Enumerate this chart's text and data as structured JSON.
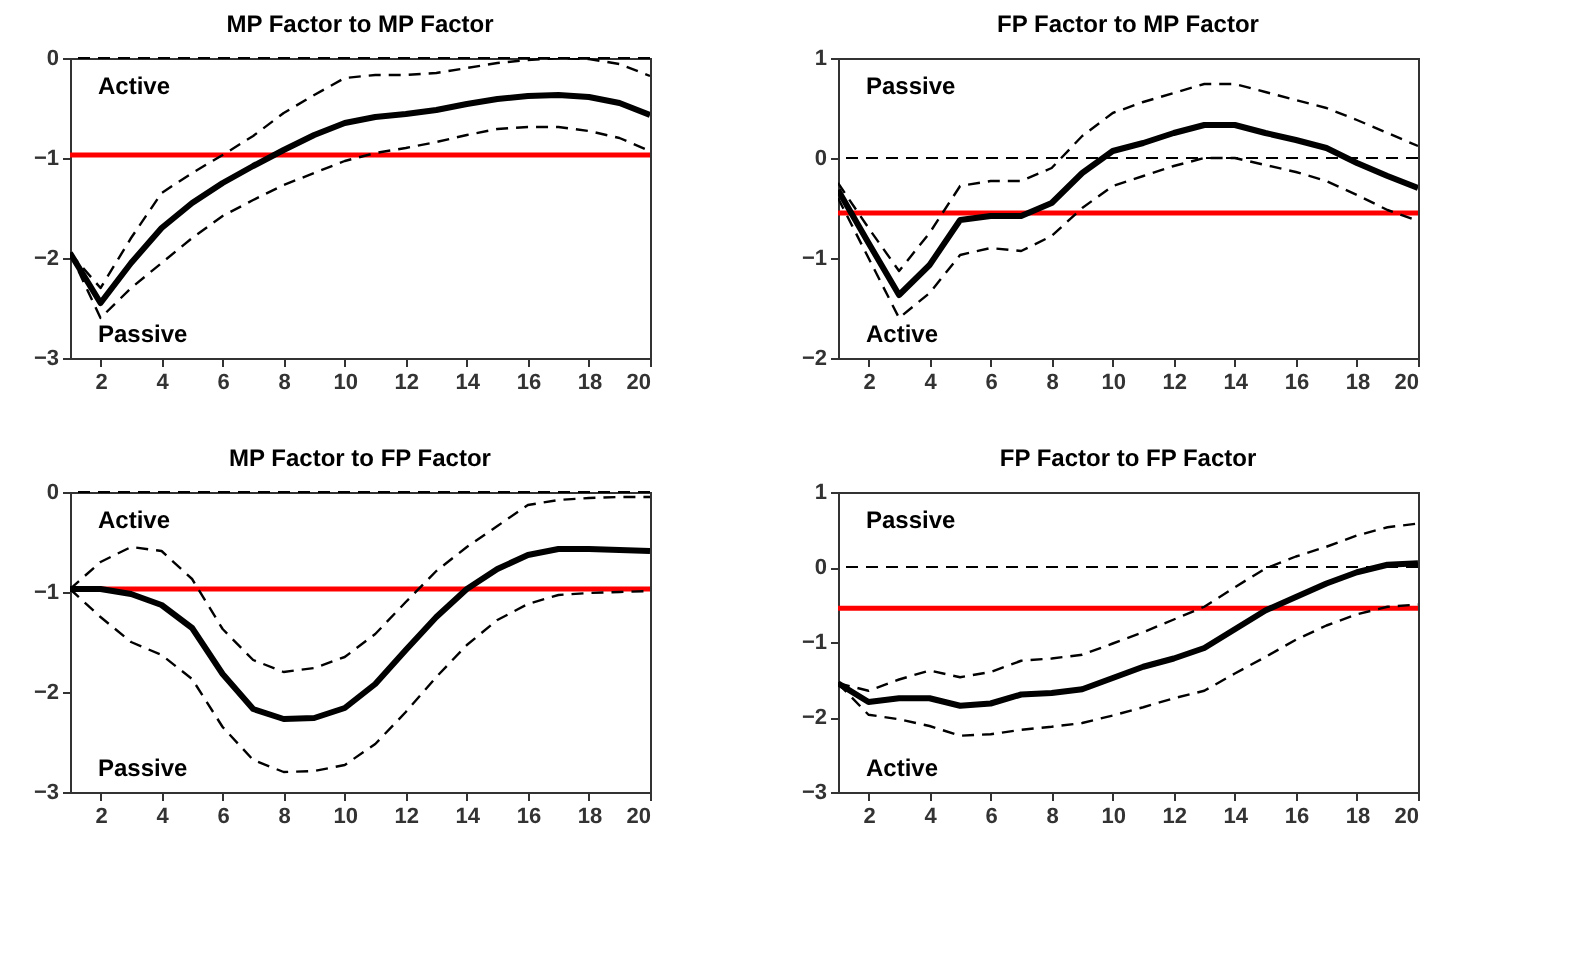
{
  "chart_data": [
    {
      "type": "line",
      "title": "MP Factor to MP Factor",
      "annotations": [
        "Active",
        "Passive"
      ],
      "x": [
        1,
        2,
        3,
        4,
        5,
        6,
        7,
        8,
        9,
        10,
        11,
        12,
        13,
        14,
        15,
        16,
        17,
        18,
        19,
        20
      ],
      "xlim": [
        1,
        20
      ],
      "xticks": [
        2,
        4,
        6,
        8,
        10,
        12,
        14,
        16,
        18,
        20
      ],
      "ylim": [
        -3,
        0
      ],
      "yticks": [
        -3,
        -2,
        -1,
        0
      ],
      "grid": false,
      "marker": "none",
      "series": [
        {
          "color": "#000000",
          "line_style": "solid",
          "values": [
            -1.95,
            -2.45,
            -2.05,
            -1.7,
            -1.45,
            -1.25,
            -1.08,
            -0.92,
            -0.77,
            -0.65,
            -0.59,
            -0.56,
            -0.52,
            -0.46,
            -0.41,
            -0.38,
            -0.37,
            -0.39,
            -0.45,
            -0.57
          ]
        },
        {
          "color": "#000000",
          "line_style": "dashed",
          "values": [
            -1.95,
            -2.3,
            -1.8,
            -1.35,
            -1.15,
            -0.97,
            -0.78,
            -0.55,
            -0.37,
            -0.2,
            -0.17,
            -0.17,
            -0.15,
            -0.1,
            -0.05,
            -0.02,
            0,
            -0.01,
            -0.06,
            -0.18
          ]
        },
        {
          "color": "#000000",
          "line_style": "dashed",
          "values": [
            -1.95,
            -2.6,
            -2.3,
            -2.05,
            -1.8,
            -1.58,
            -1.42,
            -1.27,
            -1.15,
            -1.03,
            -0.95,
            -0.9,
            -0.84,
            -0.77,
            -0.71,
            -0.69,
            -0.69,
            -0.73,
            -0.8,
            -0.93
          ]
        }
      ],
      "ref_lines": [
        {
          "axis": "y",
          "value": 0,
          "color": "#000000",
          "line_style": "dashed"
        },
        {
          "axis": "y",
          "value": -0.97,
          "color": "#ff0000",
          "line_style": "solid"
        }
      ]
    },
    {
      "type": "line",
      "title": "FP Factor to MP Factor",
      "annotations": [
        "Passive",
        "Active"
      ],
      "x": [
        1,
        2,
        3,
        4,
        5,
        6,
        7,
        8,
        9,
        10,
        11,
        12,
        13,
        14,
        15,
        16,
        17,
        18,
        19,
        20
      ],
      "xlim": [
        1,
        20
      ],
      "xticks": [
        2,
        4,
        6,
        8,
        10,
        12,
        14,
        16,
        18,
        20
      ],
      "ylim": [
        -2,
        1
      ],
      "yticks": [
        -2,
        -1,
        0,
        1
      ],
      "grid": false,
      "marker": "none",
      "series": [
        {
          "color": "#000000",
          "line_style": "solid",
          "values": [
            -0.32,
            -0.85,
            -1.37,
            -1.07,
            -0.62,
            -0.58,
            -0.58,
            -0.45,
            -0.15,
            0.07,
            0.15,
            0.25,
            0.33,
            0.33,
            0.25,
            0.18,
            0.1,
            -0.05,
            -0.18,
            -0.3
          ]
        },
        {
          "color": "#000000",
          "line_style": "dashed",
          "values": [
            -0.25,
            -0.7,
            -1.13,
            -0.75,
            -0.28,
            -0.23,
            -0.23,
            -0.1,
            0.22,
            0.45,
            0.56,
            0.65,
            0.74,
            0.74,
            0.66,
            0.58,
            0.5,
            0.38,
            0.25,
            0.12
          ]
        },
        {
          "color": "#000000",
          "line_style": "dashed",
          "values": [
            -0.4,
            -1.0,
            -1.6,
            -1.35,
            -0.97,
            -0.9,
            -0.93,
            -0.78,
            -0.5,
            -0.28,
            -0.18,
            -0.08,
            0,
            0,
            -0.07,
            -0.14,
            -0.23,
            -0.37,
            -0.52,
            -0.63
          ]
        }
      ],
      "ref_lines": [
        {
          "axis": "y",
          "value": 0,
          "color": "#000000",
          "line_style": "dashed"
        },
        {
          "axis": "y",
          "value": -0.55,
          "color": "#ff0000",
          "line_style": "solid"
        }
      ]
    },
    {
      "type": "line",
      "title": "MP Factor to FP Factor",
      "annotations": [
        "Active",
        "Passive"
      ],
      "x": [
        1,
        2,
        3,
        4,
        5,
        6,
        7,
        8,
        9,
        10,
        11,
        12,
        13,
        14,
        15,
        16,
        17,
        18,
        19,
        20
      ],
      "xlim": [
        1,
        20
      ],
      "xticks": [
        2,
        4,
        6,
        8,
        10,
        12,
        14,
        16,
        18,
        20
      ],
      "ylim": [
        -3,
        0
      ],
      "yticks": [
        -3,
        -2,
        -1,
        0
      ],
      "grid": false,
      "marker": "none",
      "series": [
        {
          "color": "#000000",
          "line_style": "solid",
          "values": [
            -0.97,
            -0.97,
            -1.02,
            -1.13,
            -1.36,
            -1.82,
            -2.17,
            -2.27,
            -2.26,
            -2.16,
            -1.92,
            -1.58,
            -1.25,
            -0.97,
            -0.77,
            -0.63,
            -0.57,
            -0.57,
            -0.58,
            -0.59
          ]
        },
        {
          "color": "#000000",
          "line_style": "dashed",
          "values": [
            -0.97,
            -0.7,
            -0.55,
            -0.59,
            -0.87,
            -1.37,
            -1.68,
            -1.8,
            -1.76,
            -1.65,
            -1.42,
            -1.1,
            -0.79,
            -0.55,
            -0.34,
            -0.13,
            -0.08,
            -0.06,
            -0.05,
            -0.05
          ]
        },
        {
          "color": "#000000",
          "line_style": "dashed",
          "values": [
            -0.97,
            -1.25,
            -1.5,
            -1.63,
            -1.87,
            -2.35,
            -2.68,
            -2.8,
            -2.79,
            -2.73,
            -2.52,
            -2.2,
            -1.85,
            -1.53,
            -1.28,
            -1.12,
            -1.03,
            -1.01,
            -1.0,
            -0.99
          ]
        }
      ],
      "ref_lines": [
        {
          "axis": "y",
          "value": 0,
          "color": "#000000",
          "line_style": "dashed"
        },
        {
          "axis": "y",
          "value": -0.97,
          "color": "#ff0000",
          "line_style": "solid"
        }
      ]
    },
    {
      "type": "line",
      "title": "FP Factor to FP Factor",
      "annotations": [
        "Passive",
        "Active"
      ],
      "x": [
        1,
        2,
        3,
        4,
        5,
        6,
        7,
        8,
        9,
        10,
        11,
        12,
        13,
        14,
        15,
        16,
        17,
        18,
        19,
        20
      ],
      "xlim": [
        1,
        20
      ],
      "xticks": [
        2,
        4,
        6,
        8,
        10,
        12,
        14,
        16,
        18,
        20
      ],
      "ylim": [
        -3,
        1
      ],
      "yticks": [
        -3,
        -2,
        -1,
        0,
        1
      ],
      "grid": false,
      "marker": "none",
      "series": [
        {
          "color": "#000000",
          "line_style": "solid",
          "values": [
            -1.55,
            -1.8,
            -1.75,
            -1.75,
            -1.85,
            -1.82,
            -1.7,
            -1.68,
            -1.63,
            -1.48,
            -1.33,
            -1.22,
            -1.08,
            -0.83,
            -0.58,
            -0.4,
            -0.22,
            -0.07,
            0.03,
            0.05
          ]
        },
        {
          "color": "#000000",
          "line_style": "dashed",
          "values": [
            -1.55,
            -1.65,
            -1.5,
            -1.38,
            -1.47,
            -1.4,
            -1.25,
            -1.22,
            -1.17,
            -1.02,
            -0.87,
            -0.7,
            -0.53,
            -0.27,
            -0.02,
            0.14,
            0.27,
            0.42,
            0.53,
            0.58
          ]
        },
        {
          "color": "#000000",
          "line_style": "dashed",
          "values": [
            -1.55,
            -1.97,
            -2.03,
            -2.12,
            -2.25,
            -2.23,
            -2.17,
            -2.13,
            -2.08,
            -1.98,
            -1.87,
            -1.75,
            -1.65,
            -1.42,
            -1.2,
            -0.97,
            -0.78,
            -0.63,
            -0.53,
            -0.5
          ]
        }
      ],
      "ref_lines": [
        {
          "axis": "y",
          "value": 0,
          "color": "#000000",
          "line_style": "dashed"
        },
        {
          "axis": "y",
          "value": -0.55,
          "color": "#ff0000",
          "line_style": "solid"
        }
      ]
    }
  ]
}
